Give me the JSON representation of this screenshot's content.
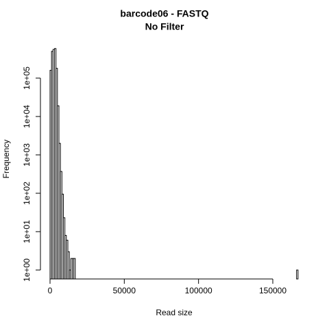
{
  "chart_data": {
    "type": "histogram",
    "title": "barcode06 - FASTQ",
    "subtitle": "No Filter",
    "x_label": "Read size",
    "y_label": "Frequency",
    "bins": [
      0,
      1000,
      2000,
      3000,
      4000,
      5000,
      6000,
      7000,
      8000,
      9000,
      10000,
      11000,
      12000,
      13000,
      14000,
      15000,
      16000,
      17000,
      166000,
      167000
    ],
    "values": [
      160000,
      500000,
      560000,
      590000,
      180000,
      19000,
      2000,
      370,
      95,
      23,
      8,
      6,
      3,
      1,
      2,
      2,
      2,
      0,
      1
    ],
    "color": "#ffffff",
    "edge_color": "#000000",
    "xlim": [
      -6460,
      169850
    ],
    "xticks": [
      0,
      50000,
      100000,
      150000
    ],
    "ylim": [
      0.585,
      920000
    ],
    "y_log": true,
    "yticks": [
      {
        "value": 1,
        "label": "1e+00"
      },
      {
        "value": 10,
        "label": "1e+01"
      },
      {
        "value": 100,
        "label": "1e+02"
      },
      {
        "value": 1000,
        "label": "1e+03"
      },
      {
        "value": 10000,
        "label": "1e+04"
      },
      {
        "value": 100000,
        "label": "1e+05"
      }
    ]
  }
}
